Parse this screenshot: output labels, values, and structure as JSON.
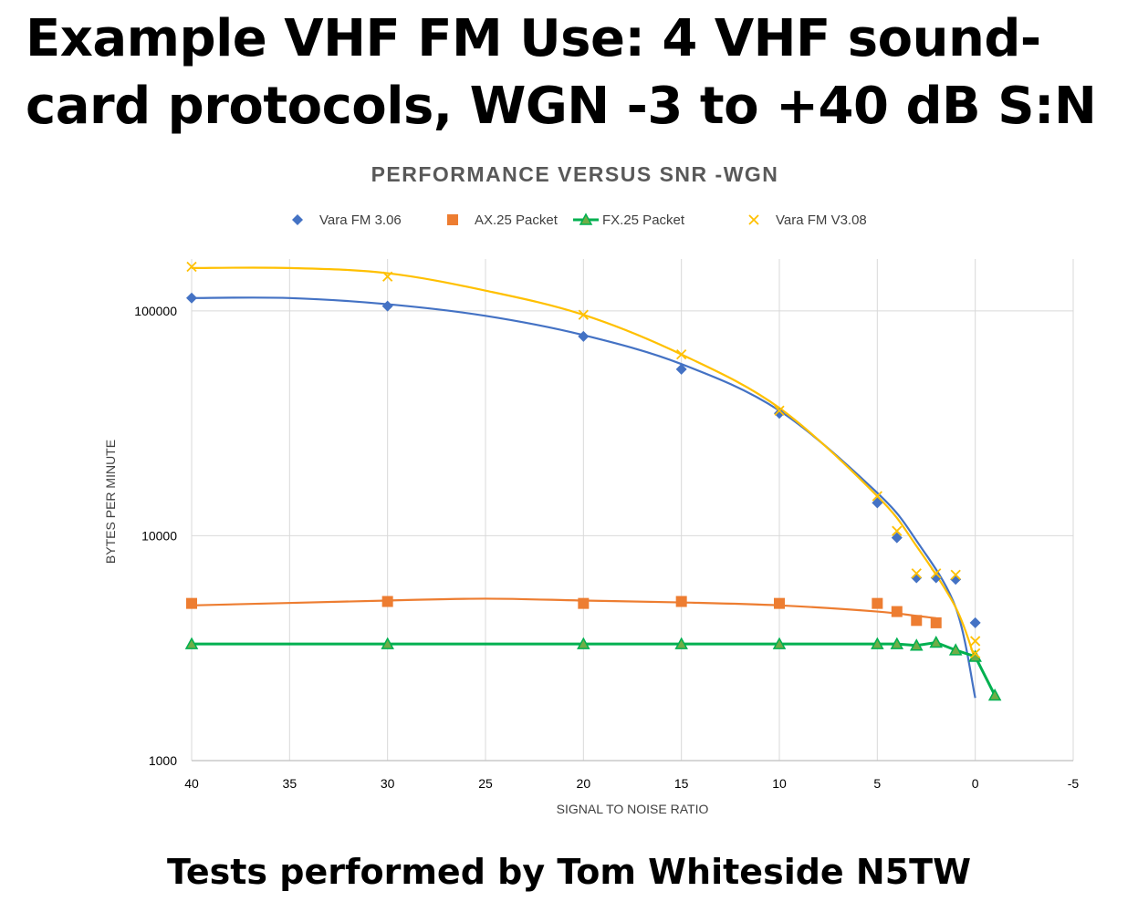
{
  "slide": {
    "title": "Example VHF FM Use: 4 VHF sound-card protocols, WGN -3 to +40 dB S:N",
    "footer": "Tests performed by Tom Whiteside N5TW"
  },
  "colors": {
    "vara306": "#4472C4",
    "ax25": "#ED7D31",
    "fx25": "#00B050",
    "fx25_fill": "#70AD47",
    "vara308": "#FFC000",
    "grid": "#D9D9D9",
    "axis": "#BFBFBF"
  },
  "chart_data": {
    "type": "scatter",
    "title": "PERFORMANCE VERSUS SNR -WGN",
    "xlabel": "SIGNAL TO NOISE RATIO",
    "ylabel": "BYTES PER MINUTE",
    "x_reversed": true,
    "xlim": [
      40,
      -5
    ],
    "x_ticks": [
      40,
      35,
      30,
      25,
      20,
      15,
      10,
      5,
      0,
      -5
    ],
    "y_scale": "log",
    "ylim": [
      1000,
      170000
    ],
    "y_ticks": [
      1000,
      10000,
      100000
    ],
    "grid": true,
    "legend_position": "top",
    "series": [
      {
        "name": "Vara FM 3.06",
        "marker": "diamond",
        "trendline": "polynomial",
        "points": [
          [
            40,
            114000
          ],
          [
            30,
            105000
          ],
          [
            20,
            77000
          ],
          [
            15,
            55000
          ],
          [
            10,
            35000
          ],
          [
            5,
            14000
          ],
          [
            4,
            9800
          ],
          [
            3,
            6500
          ],
          [
            2,
            6500
          ],
          [
            1,
            6400
          ],
          [
            0,
            4100
          ]
        ],
        "trend": [
          [
            40,
            114000
          ],
          [
            35,
            114000
          ],
          [
            30,
            107000
          ],
          [
            25,
            95000
          ],
          [
            20,
            78000
          ],
          [
            15,
            58000
          ],
          [
            10,
            36000
          ],
          [
            5,
            15500
          ],
          [
            3,
            9500
          ],
          [
            1,
            4800
          ],
          [
            0,
            1900
          ]
        ]
      },
      {
        "name": "AX.25 Packet",
        "marker": "square",
        "trendline": "polynomial",
        "points": [
          [
            40,
            5000
          ],
          [
            30,
            5100
          ],
          [
            20,
            5000
          ],
          [
            15,
            5100
          ],
          [
            10,
            5000
          ],
          [
            5,
            5000
          ],
          [
            4,
            4600
          ],
          [
            3,
            4200
          ],
          [
            2,
            4100
          ]
        ],
        "trend": [
          [
            40,
            4900
          ],
          [
            30,
            5150
          ],
          [
            25,
            5250
          ],
          [
            20,
            5150
          ],
          [
            15,
            5050
          ],
          [
            10,
            4900
          ],
          [
            5,
            4600
          ],
          [
            3,
            4400
          ],
          [
            2,
            4300
          ]
        ]
      },
      {
        "name": "FX.25 Packet",
        "marker": "triangle",
        "trendline": "line",
        "points": [
          [
            40,
            3300
          ],
          [
            30,
            3300
          ],
          [
            20,
            3300
          ],
          [
            15,
            3300
          ],
          [
            10,
            3300
          ],
          [
            5,
            3300
          ],
          [
            4,
            3300
          ],
          [
            3,
            3250
          ],
          [
            2,
            3350
          ],
          [
            1,
            3100
          ],
          [
            0,
            2900
          ],
          [
            -1,
            1950
          ]
        ]
      },
      {
        "name": "Vara FM V3.08",
        "marker": "x",
        "trendline": "polynomial",
        "points": [
          [
            40,
            157000
          ],
          [
            30,
            142000
          ],
          [
            20,
            96000
          ],
          [
            15,
            64000
          ],
          [
            10,
            36000
          ],
          [
            5,
            15000
          ],
          [
            4,
            10500
          ],
          [
            3,
            6800
          ],
          [
            2,
            6800
          ],
          [
            1,
            6700
          ],
          [
            0,
            3400
          ],
          [
            0,
            3000
          ]
        ],
        "trend": [
          [
            40,
            155000
          ],
          [
            35,
            155000
          ],
          [
            30,
            147000
          ],
          [
            25,
            123000
          ],
          [
            20,
            96000
          ],
          [
            15,
            64000
          ],
          [
            10,
            37000
          ],
          [
            5,
            15000
          ],
          [
            3,
            9000
          ],
          [
            1,
            4800
          ],
          [
            0,
            2800
          ]
        ]
      }
    ]
  }
}
